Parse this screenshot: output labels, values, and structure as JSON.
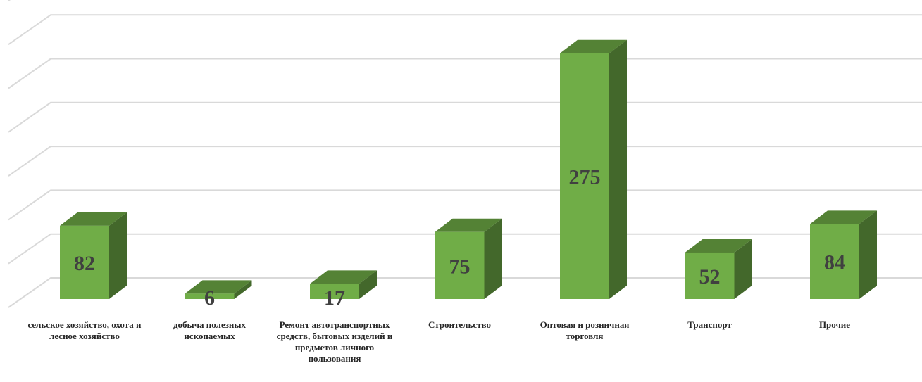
{
  "chart_data": {
    "type": "bar",
    "style": "3d-column",
    "categories": [
      "сельское хозяйство, охота и лесное хозяйство",
      "добыча полезных ископаемых",
      "Ремонт автотранспортных средств, бытовых изделий и предметов личного пользования",
      "Строительство",
      "Оптовая и розничная торговля",
      "Транспорт",
      "Прочие"
    ],
    "values": [
      82,
      6,
      17,
      75,
      275,
      52,
      84
    ],
    "data_labels": [
      "82",
      "6",
      "17",
      "75",
      "275",
      "52",
      "84"
    ],
    "title": "",
    "xlabel": "",
    "ylabel": "",
    "ylim": [
      0,
      350
    ],
    "y_tick_labels_visible": false,
    "grid": true,
    "legend": "none",
    "colors": {
      "bar_front": "#70ad47",
      "bar_top": "#548235",
      "bar_side": "#43682b",
      "gridline": "#d9d9d9",
      "label_text": "#404040"
    }
  }
}
